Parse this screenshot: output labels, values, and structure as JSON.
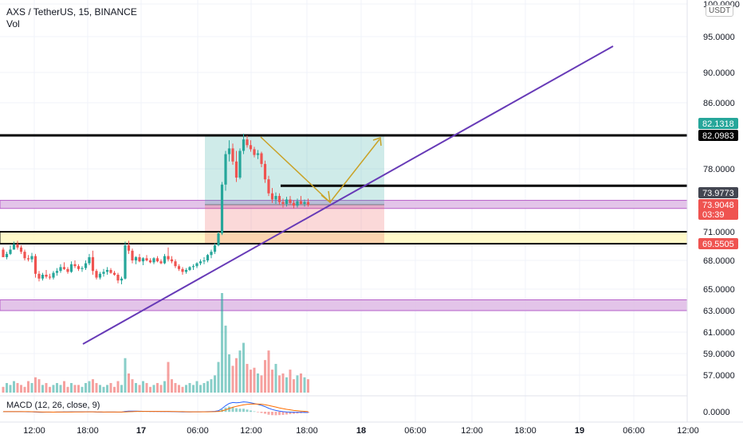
{
  "legend": {
    "title": "AXS / TetherUS, 15, BINANCE",
    "vol_label": "Vol"
  },
  "macd_label": "MACD (12, 26, close, 9)",
  "currency": "USDT",
  "axis": {
    "price_ticks": [
      {
        "value": 100,
        "label": "100.0000"
      },
      {
        "value": 95,
        "label": "95.0000"
      },
      {
        "value": 90,
        "label": "90.0000"
      },
      {
        "value": 86,
        "label": "86.0000"
      },
      {
        "value": 78,
        "label": "78.0000"
      },
      {
        "value": 71,
        "label": "71.0000"
      },
      {
        "value": 68,
        "label": "68.0000"
      },
      {
        "value": 65,
        "label": "65.0000"
      },
      {
        "value": 63,
        "label": "63.0000"
      },
      {
        "value": 61,
        "label": "61.0000"
      },
      {
        "value": 59,
        "label": "59.0000"
      },
      {
        "value": 57,
        "label": "57.0000"
      }
    ],
    "macd_tick": "0.0000",
    "time_ticks": [
      "12:00",
      "18:00",
      "17",
      "06:00",
      "12:00",
      "18:00",
      "18",
      "06:00",
      "12:00",
      "18:00",
      "19",
      "06:00",
      "12:00"
    ]
  },
  "price_badges": [
    {
      "label": "82.1318",
      "color": "#26a69a"
    },
    {
      "label": "82.0983",
      "color": "#000000"
    },
    {
      "label": "73.9773",
      "color": "#434651"
    },
    {
      "label": "73.9048",
      "color": "#ef5350"
    },
    {
      "label": "03:39",
      "color": "#ef5350"
    },
    {
      "label": "69.5505",
      "color": "#ef5350"
    }
  ],
  "colors": {
    "up": "#26a69a",
    "down": "#ef5350",
    "trendline": "#673ab7",
    "arrow": "#c9a227",
    "zone_purple": "#e1bee7",
    "zone_yellow": "#fff9c4"
  },
  "chart_data": {
    "type": "candlestick",
    "symbol": "AXS / TetherUS",
    "interval": "15",
    "exchange": "BINANCE",
    "ylim": [
      55.5,
      100.5
    ],
    "last_price": 73.9048,
    "horizontal_levels": [
      82.0983,
      73.9773,
      71.0,
      69.5505
    ],
    "zones": [
      {
        "name": "purple-upper",
        "from": 73.5,
        "to": 74.4
      },
      {
        "name": "yellow",
        "from": 69.55,
        "to": 71.0
      },
      {
        "name": "purple-lower",
        "from": 63.0,
        "to": 64.0
      }
    ],
    "position": {
      "type": "long",
      "entry": 73.9,
      "target": 82.1,
      "stop": 69.55
    },
    "trendline": {
      "from_price": 60.0,
      "to_price": 94.0
    },
    "candles": [
      [
        69.0,
        69.2,
        68.4,
        68.3
      ],
      [
        68.3,
        68.8,
        68.1,
        68.6
      ],
      [
        68.6,
        69.4,
        68.5,
        69.0
      ],
      [
        69.0,
        69.8,
        69.0,
        69.5
      ],
      [
        69.5,
        69.9,
        69.0,
        69.2
      ],
      [
        69.2,
        69.4,
        68.6,
        68.8
      ],
      [
        68.8,
        69.0,
        68.0,
        68.2
      ],
      [
        68.2,
        68.5,
        67.9,
        68.1
      ],
      [
        68.1,
        68.7,
        67.8,
        68.4
      ],
      [
        68.4,
        68.6,
        66.2,
        66.6
      ],
      [
        66.6,
        66.9,
        65.8,
        66.1
      ],
      [
        66.1,
        66.7,
        65.9,
        66.5
      ],
      [
        66.5,
        67.0,
        66.1,
        66.3
      ],
      [
        66.3,
        66.6,
        66.0,
        66.2
      ],
      [
        66.2,
        66.9,
        66.0,
        66.7
      ],
      [
        66.7,
        67.2,
        66.4,
        66.9
      ],
      [
        66.9,
        67.6,
        66.7,
        67.3
      ],
      [
        67.3,
        67.8,
        67.0,
        67.1
      ],
      [
        67.1,
        67.3,
        66.6,
        66.8
      ],
      [
        66.8,
        67.9,
        66.7,
        67.6
      ],
      [
        67.6,
        68.0,
        67.2,
        67.4
      ],
      [
        67.4,
        67.6,
        66.9,
        67.1
      ],
      [
        67.1,
        67.4,
        66.8,
        67.2
      ],
      [
        67.2,
        68.0,
        67.0,
        67.7
      ],
      [
        67.7,
        68.6,
        67.5,
        68.3
      ],
      [
        68.3,
        68.9,
        66.5,
        66.9
      ],
      [
        66.9,
        67.1,
        66.0,
        66.2
      ],
      [
        66.2,
        66.8,
        66.0,
        66.6
      ],
      [
        66.6,
        67.1,
        66.3,
        66.8
      ],
      [
        66.8,
        67.3,
        66.5,
        67.0
      ],
      [
        67.0,
        67.2,
        66.6,
        66.7
      ],
      [
        66.7,
        66.9,
        66.4,
        66.5
      ],
      [
        66.5,
        66.7,
        65.6,
        65.9
      ],
      [
        65.9,
        66.3,
        65.5,
        66.1
      ],
      [
        66.1,
        69.8,
        66.0,
        69.4
      ],
      [
        69.4,
        69.9,
        68.6,
        68.9
      ],
      [
        68.9,
        69.1,
        67.7,
        68.0
      ],
      [
        68.0,
        68.4,
        67.6,
        68.3
      ],
      [
        68.3,
        68.6,
        67.8,
        67.9
      ],
      [
        67.9,
        68.3,
        67.5,
        68.2
      ],
      [
        68.2,
        68.5,
        67.9,
        68.0
      ],
      [
        68.0,
        68.2,
        67.7,
        67.8
      ],
      [
        67.8,
        68.3,
        67.6,
        68.2
      ],
      [
        68.2,
        68.4,
        67.8,
        67.9
      ],
      [
        67.9,
        68.1,
        67.6,
        67.7
      ],
      [
        67.7,
        68.6,
        67.6,
        68.4
      ],
      [
        68.4,
        69.2,
        67.9,
        68.1
      ],
      [
        68.1,
        68.4,
        67.7,
        67.9
      ],
      [
        67.9,
        68.1,
        67.2,
        67.4
      ],
      [
        67.4,
        67.6,
        66.9,
        67.1
      ],
      [
        67.1,
        67.3,
        66.5,
        66.8
      ],
      [
        66.8,
        67.2,
        66.6,
        67.0
      ],
      [
        67.0,
        67.4,
        66.9,
        67.3
      ],
      [
        67.3,
        67.6,
        67.0,
        67.4
      ],
      [
        67.4,
        67.8,
        67.2,
        67.7
      ],
      [
        67.7,
        68.1,
        67.5,
        67.9
      ],
      [
        67.9,
        68.3,
        67.6,
        68.0
      ],
      [
        68.0,
        68.6,
        67.8,
        68.5
      ],
      [
        68.5,
        69.0,
        68.2,
        68.8
      ],
      [
        68.8,
        69.6,
        68.6,
        69.4
      ],
      [
        69.4,
        71.0,
        69.3,
        70.8
      ],
      [
        70.8,
        76.5,
        70.6,
        76.2
      ],
      [
        76.2,
        80.2,
        75.5,
        79.8
      ],
      [
        79.8,
        81.5,
        78.9,
        80.5
      ],
      [
        80.5,
        81.1,
        78.5,
        78.9
      ],
      [
        78.9,
        80.2,
        76.5,
        77.0
      ],
      [
        77.0,
        80.5,
        76.8,
        80.2
      ],
      [
        80.2,
        82.3,
        79.8,
        81.6
      ],
      [
        81.6,
        82.1,
        80.6,
        80.9
      ],
      [
        80.9,
        81.5,
        80.1,
        80.4
      ],
      [
        80.4,
        80.7,
        79.4,
        79.7
      ],
      [
        79.7,
        80.3,
        79.2,
        79.9
      ],
      [
        79.9,
        80.1,
        78.2,
        78.6
      ],
      [
        78.6,
        79.0,
        76.4,
        76.8
      ],
      [
        76.8,
        77.2,
        74.9,
        75.2
      ],
      [
        75.2,
        75.8,
        74.1,
        74.5
      ],
      [
        74.5,
        75.3,
        74.0,
        74.9
      ],
      [
        74.9,
        75.2,
        73.9,
        74.2
      ],
      [
        74.2,
        74.6,
        73.6,
        74.0
      ],
      [
        74.0,
        74.8,
        73.7,
        74.5
      ],
      [
        74.5,
        74.9,
        73.9,
        74.1
      ],
      [
        74.1,
        74.4,
        73.5,
        73.8
      ],
      [
        73.8,
        74.6,
        73.6,
        74.3
      ],
      [
        74.3,
        74.9,
        73.9,
        74.0
      ],
      [
        74.0,
        74.5,
        73.7,
        74.2
      ],
      [
        74.2,
        74.6,
        73.7,
        73.9
      ]
    ],
    "volumes": [
      3,
      5,
      4,
      6,
      5,
      4,
      3,
      6,
      5,
      8,
      7,
      4,
      5,
      3,
      4,
      5,
      4,
      6,
      3,
      5,
      4,
      4,
      3,
      5,
      6,
      7,
      5,
      4,
      3,
      4,
      5,
      3,
      6,
      4,
      18,
      10,
      7,
      5,
      4,
      6,
      5,
      3,
      4,
      5,
      4,
      6,
      16,
      7,
      5,
      4,
      3,
      4,
      5,
      4,
      6,
      4,
      5,
      6,
      7,
      9,
      16,
      52,
      35,
      20,
      14,
      18,
      22,
      26,
      15,
      12,
      13,
      10,
      9,
      17,
      22,
      12,
      15,
      9,
      10,
      8,
      12,
      7,
      9,
      10,
      8,
      7
    ],
    "macd_line": [
      0.02,
      0.01,
      0.01,
      0.02,
      0.02,
      0.01,
      0.0,
      -0.01,
      -0.02,
      -0.05,
      -0.08,
      -0.08,
      -0.07,
      -0.07,
      -0.06,
      -0.05,
      -0.04,
      -0.03,
      -0.03,
      -0.02,
      -0.02,
      -0.02,
      -0.02,
      -0.01,
      0.0,
      -0.02,
      -0.05,
      -0.06,
      -0.06,
      -0.05,
      -0.05,
      -0.05,
      -0.06,
      -0.06,
      0.05,
      0.1,
      0.1,
      0.09,
      0.08,
      0.07,
      0.06,
      0.05,
      0.04,
      0.04,
      0.03,
      0.03,
      0.03,
      0.02,
      0.0,
      -0.02,
      -0.03,
      -0.03,
      -0.03,
      -0.02,
      -0.02,
      -0.01,
      0.0,
      0.01,
      0.03,
      0.06,
      0.15,
      0.5,
      0.95,
      1.3,
      1.45,
      1.4,
      1.45,
      1.55,
      1.5,
      1.4,
      1.28,
      1.15,
      1.0,
      0.8,
      0.55,
      0.35,
      0.2,
      0.1,
      0.02,
      -0.03,
      -0.06,
      -0.09,
      -0.1,
      -0.1,
      -0.11,
      -0.12
    ],
    "signal_line": [
      0.02,
      0.02,
      0.02,
      0.02,
      0.02,
      0.02,
      0.01,
      0.01,
      0.0,
      -0.01,
      -0.03,
      -0.04,
      -0.05,
      -0.05,
      -0.06,
      -0.05,
      -0.05,
      -0.05,
      -0.04,
      -0.04,
      -0.03,
      -0.03,
      -0.03,
      -0.02,
      -0.02,
      -0.02,
      -0.03,
      -0.03,
      -0.04,
      -0.04,
      -0.05,
      -0.05,
      -0.05,
      -0.05,
      -0.03,
      0.0,
      0.02,
      0.04,
      0.05,
      0.05,
      0.05,
      0.05,
      0.05,
      0.05,
      0.04,
      0.04,
      0.04,
      0.03,
      0.03,
      0.02,
      0.01,
      0.0,
      -0.01,
      -0.01,
      -0.01,
      -0.01,
      -0.01,
      -0.01,
      0.0,
      0.01,
      0.04,
      0.13,
      0.3,
      0.5,
      0.7,
      0.85,
      0.97,
      1.08,
      1.16,
      1.21,
      1.22,
      1.21,
      1.17,
      1.09,
      0.99,
      0.86,
      0.73,
      0.6,
      0.49,
      0.38,
      0.29,
      0.21,
      0.15,
      0.1,
      0.06,
      0.02
    ]
  }
}
